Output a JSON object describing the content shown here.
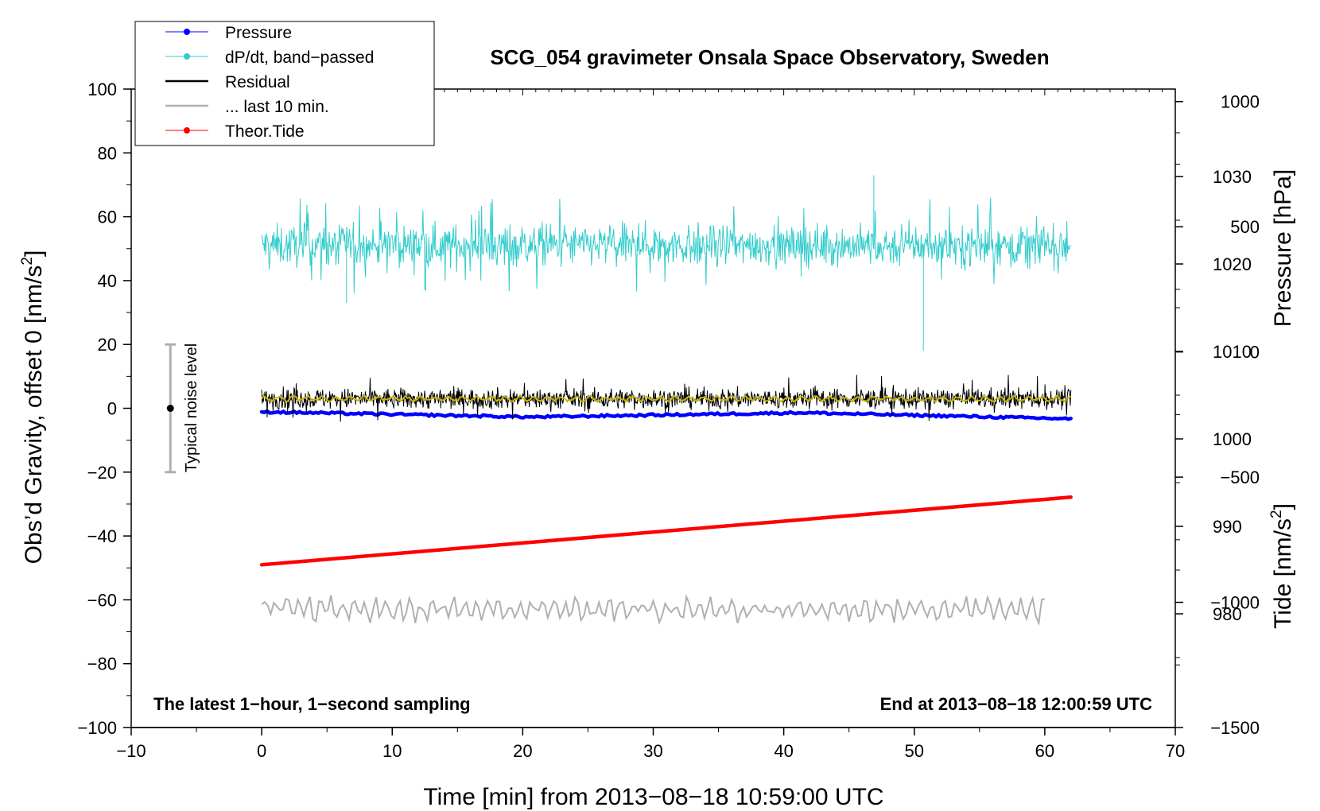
{
  "chart_data": {
    "type": "line",
    "title": "SCG_054 gravimeter Onsala Space Observatory, Sweden",
    "xlabel": "Time [min] from 2013−08−18 10:59:00 UTC",
    "ylabel": "Obs’d Gravity, offset 0 [nm/s²]",
    "ylabel_right_pressure": "Pressure [hPa]",
    "ylabel_right_tide": "Tide [nm/s²]",
    "xlim": [
      -10,
      70
    ],
    "ylim": [
      -100,
      100
    ],
    "x_ticks": [
      "−10",
      "0",
      "10",
      "20",
      "30",
      "40",
      "50",
      "60",
      "70"
    ],
    "y_ticks": [
      "−100",
      "−80",
      "−60",
      "−40",
      "−20",
      "0",
      "20",
      "40",
      "60",
      "80",
      "100"
    ],
    "pressure_ticks": [
      "980",
      "990",
      "1000",
      "1010",
      "1020",
      "1030"
    ],
    "pressure_range": [
      967,
      1040
    ],
    "tide_ticks": [
      "−1500",
      "−1000",
      "−500",
      "0",
      "500",
      "1000"
    ],
    "tide_range": [
      -1500,
      1050
    ],
    "legend": [
      "Pressure",
      "dP/dt, band−passed",
      "Residual",
      "... last 10 min.",
      "Theor.Tide"
    ],
    "legend_position": "top-left",
    "annotations": {
      "left_note": "The latest 1−hour, 1−second sampling",
      "right_note": "End at 2013−08−18 12:00:59 UTC",
      "noise_label": "Typical noise level"
    },
    "noise_bar": {
      "x": -7,
      "center": 0,
      "half_range": 20
    },
    "series": [
      {
        "name": "Pressure",
        "color": "#0000ff",
        "x_range": [
          0,
          62
        ],
        "approx_pressure_hPa": [
          1003.1,
          1002.5,
          1003.0,
          1002.3
        ],
        "axis": "pressure"
      },
      {
        "name": "dP/dt, band−passed",
        "color": "#33cccc",
        "x_range": [
          0,
          62
        ],
        "approx_center": 51,
        "approx_min": 18,
        "approx_max": 73,
        "axis": "gravity"
      },
      {
        "name": "Residual",
        "color": "#000000",
        "x_range": [
          0,
          62
        ],
        "approx_center": 3,
        "approx_min": -6,
        "approx_max": 11,
        "axis": "gravity"
      },
      {
        "name": "Residual smoothed",
        "color": "#c8b400",
        "x_range": [
          0,
          62
        ],
        "approx_center": 3,
        "axis": "gravity"
      },
      {
        "name": "... last 10 min.",
        "color": "#b0b0b0",
        "x_range": [
          0,
          60
        ],
        "approx_center": -63,
        "approx_min": -69,
        "approx_max": -56,
        "axis": "gravity"
      },
      {
        "name": "Theor.Tide",
        "color": "#ff0000",
        "x_range": [
          0,
          62
        ],
        "approx_tide": [
          -850,
          -580
        ],
        "axis": "tide"
      }
    ]
  }
}
